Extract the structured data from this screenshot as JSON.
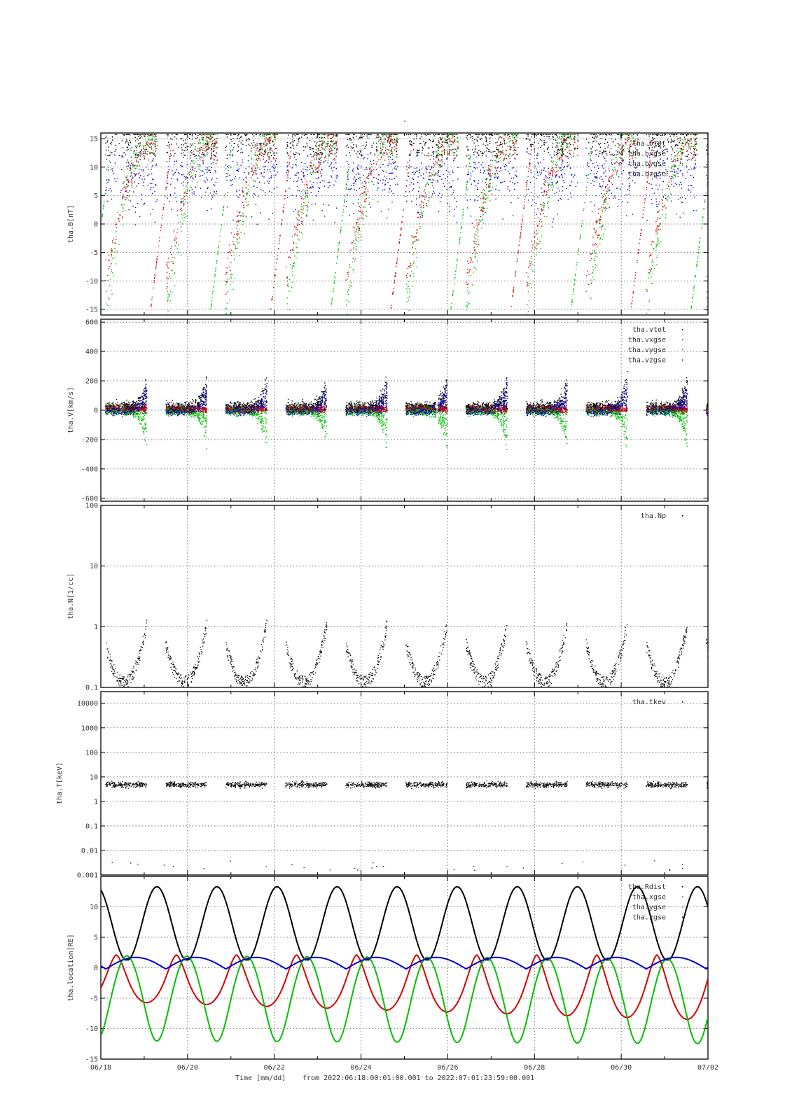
{
  "figure": {
    "title": "-",
    "xlabel": "Time [mm/dd]",
    "range_text": "from 2022:06:18:00:01:00.001  to  2022:07:01:23:59:00.001"
  },
  "colors": {
    "black": "#000000",
    "red": "#d40000",
    "green": "#00c000",
    "blue": "#0000cc",
    "grid": "#555555"
  },
  "chart_data": [
    {
      "id": "B",
      "type": "scatter",
      "ylabel": "tha.B[nT]",
      "ylim": [
        -16,
        16
      ],
      "yticks": [
        -15,
        -10,
        -5,
        0,
        5,
        10,
        15
      ],
      "scale": "linear",
      "legend": {
        "placement": "top-right",
        "entries": [
          "tha.btot",
          "tha.bxgse",
          "tha.bygse",
          "tha.bzgse"
        ]
      },
      "series": [
        {
          "name": "tha.btot",
          "color": "black"
        },
        {
          "name": "tha.bxgse",
          "color": "red"
        },
        {
          "name": "tha.bygse",
          "color": "green"
        },
        {
          "name": "tha.bzgse",
          "color": "blue"
        }
      ]
    },
    {
      "id": "V",
      "type": "scatter",
      "ylabel": "tha.V[km/s]",
      "ylim": [
        -620,
        620
      ],
      "yticks": [
        -600,
        -400,
        -200,
        0,
        200,
        400,
        600
      ],
      "scale": "linear",
      "legend": {
        "placement": "top-right",
        "entries": [
          "tha.vtot",
          "tha.vxgse",
          "tha.vygse",
          "tha.vzgse"
        ]
      },
      "series": [
        {
          "name": "tha.vtot",
          "color": "black"
        },
        {
          "name": "tha.vxgse",
          "color": "red"
        },
        {
          "name": "tha.vygse",
          "color": "green"
        },
        {
          "name": "tha.vzgse",
          "color": "blue"
        }
      ]
    },
    {
      "id": "N",
      "type": "scatter",
      "ylabel": "tha.N[1/cc]",
      "ylim": [
        0.1,
        100
      ],
      "yticks": [
        0.1,
        1,
        10,
        100
      ],
      "ytick_labels": [
        "0.1",
        "1",
        "10",
        "100"
      ],
      "scale": "log",
      "legend": {
        "placement": "top-right",
        "entries": [
          "tha.Np"
        ]
      },
      "series": [
        {
          "name": "tha.Np",
          "color": "black"
        }
      ]
    },
    {
      "id": "T",
      "type": "scatter",
      "ylabel": "tha.T[keV]",
      "ylim": [
        0.001,
        30000
      ],
      "yticks": [
        0.001,
        0.01,
        0.1,
        1,
        10,
        100,
        1000,
        10000
      ],
      "ytick_labels": [
        "0.001",
        "0.01",
        "0.1",
        "1",
        "10",
        "100",
        "1000",
        "10000"
      ],
      "scale": "log",
      "legend": {
        "placement": "top-right",
        "entries": [
          "tha.tkev"
        ]
      },
      "series": [
        {
          "name": "tha.tkev",
          "color": "black"
        }
      ]
    },
    {
      "id": "location",
      "type": "line",
      "ylabel": "tha.location[RE]",
      "ylim": [
        -15,
        15
      ],
      "yticks": [
        -15,
        -10,
        -5,
        0,
        5,
        10
      ],
      "scale": "linear",
      "legend": {
        "placement": "top-right",
        "entries": [
          "tha.Rdist",
          "tha.xgse",
          "tha.ygse",
          "tha.zgse"
        ]
      },
      "series": [
        {
          "name": "tha.Rdist",
          "color": "black"
        },
        {
          "name": "tha.xgse",
          "color": "red"
        },
        {
          "name": "tha.ygse",
          "color": "green"
        },
        {
          "name": "tha.zgse",
          "color": "blue"
        }
      ]
    }
  ],
  "xaxis": {
    "start": "2022-06-18",
    "end": "2022-07-02",
    "tick_labels": [
      "06/18",
      "06/20",
      "06/22",
      "06/24",
      "06/26",
      "06/28",
      "06/30",
      "07/02"
    ],
    "grid": true
  }
}
